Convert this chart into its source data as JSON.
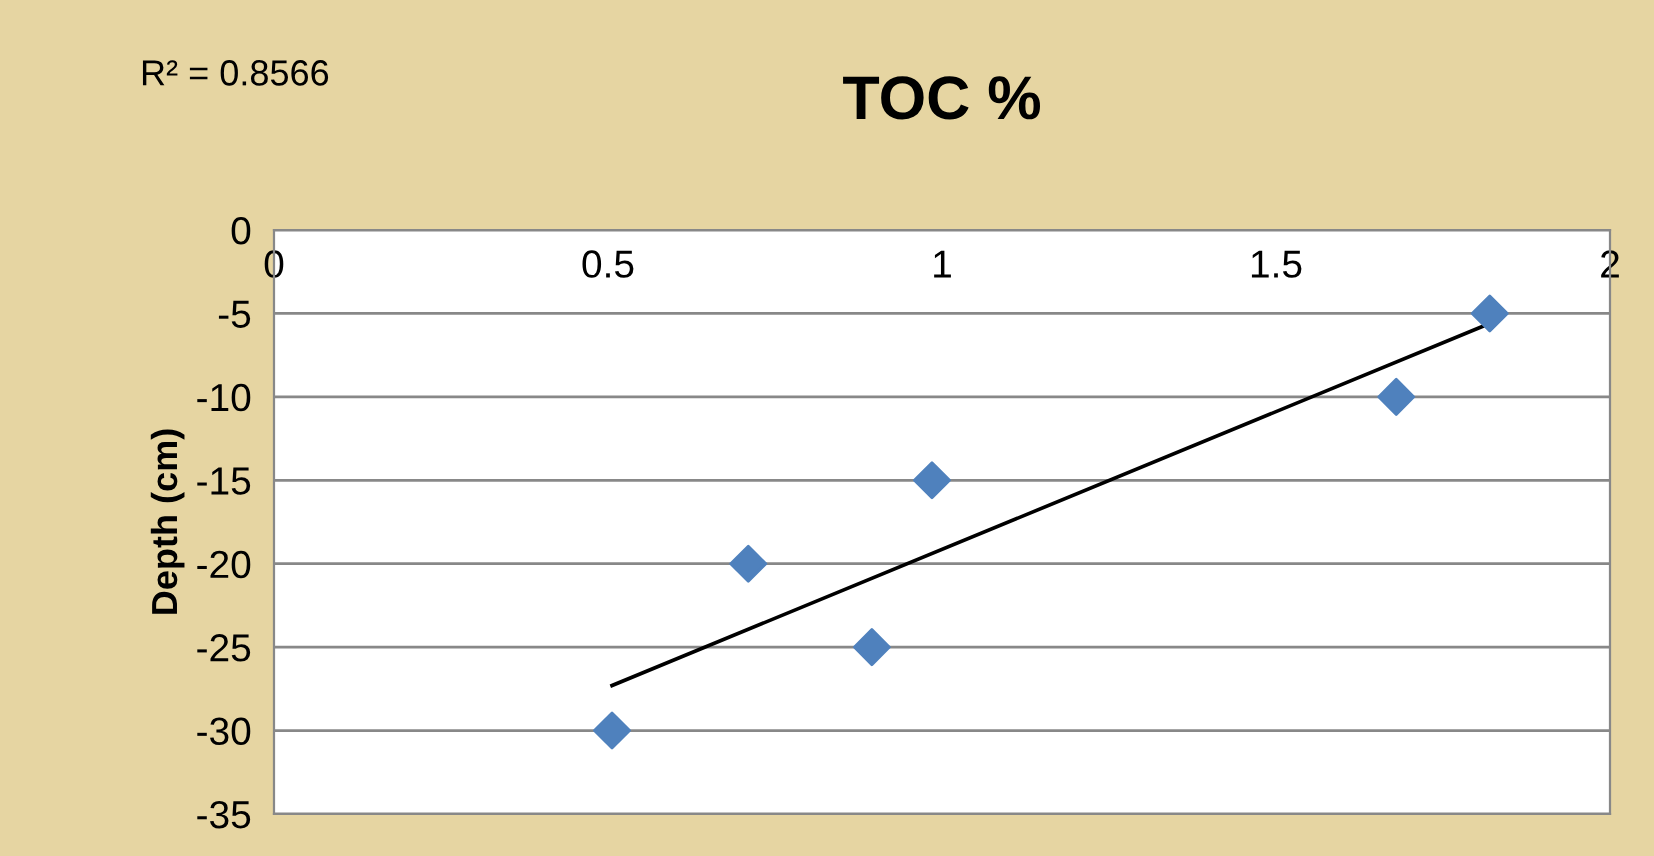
{
  "chart_data": {
    "type": "scatter",
    "title": "TOC %",
    "ylabel": "Depth (cm)",
    "annotations": [
      "R² = 0.8566"
    ],
    "series": [
      {
        "color": "#4f81bd",
        "x": [
          1.82,
          1.68,
          0.985,
          0.71,
          0.895,
          0.506
        ],
        "values": [
          -5,
          -10,
          -15,
          -20,
          -25,
          -30
        ],
        "marker": "diamond"
      },
      {
        "type": "line",
        "color": "#000000",
        "x": [
          0.506,
          1.82
        ],
        "values": [
          -27.3,
          -5.6
        ],
        "line_style": "solid",
        "marker": "none"
      }
    ],
    "xlim": [
      0,
      2
    ],
    "xticks": [
      0,
      0.5,
      1,
      1.5,
      2
    ],
    "ylim": [
      -35,
      0
    ],
    "yticks": [
      0,
      -5,
      -10,
      -15,
      -20,
      -25,
      -30,
      -35
    ],
    "grid": "y",
    "legend": false
  }
}
